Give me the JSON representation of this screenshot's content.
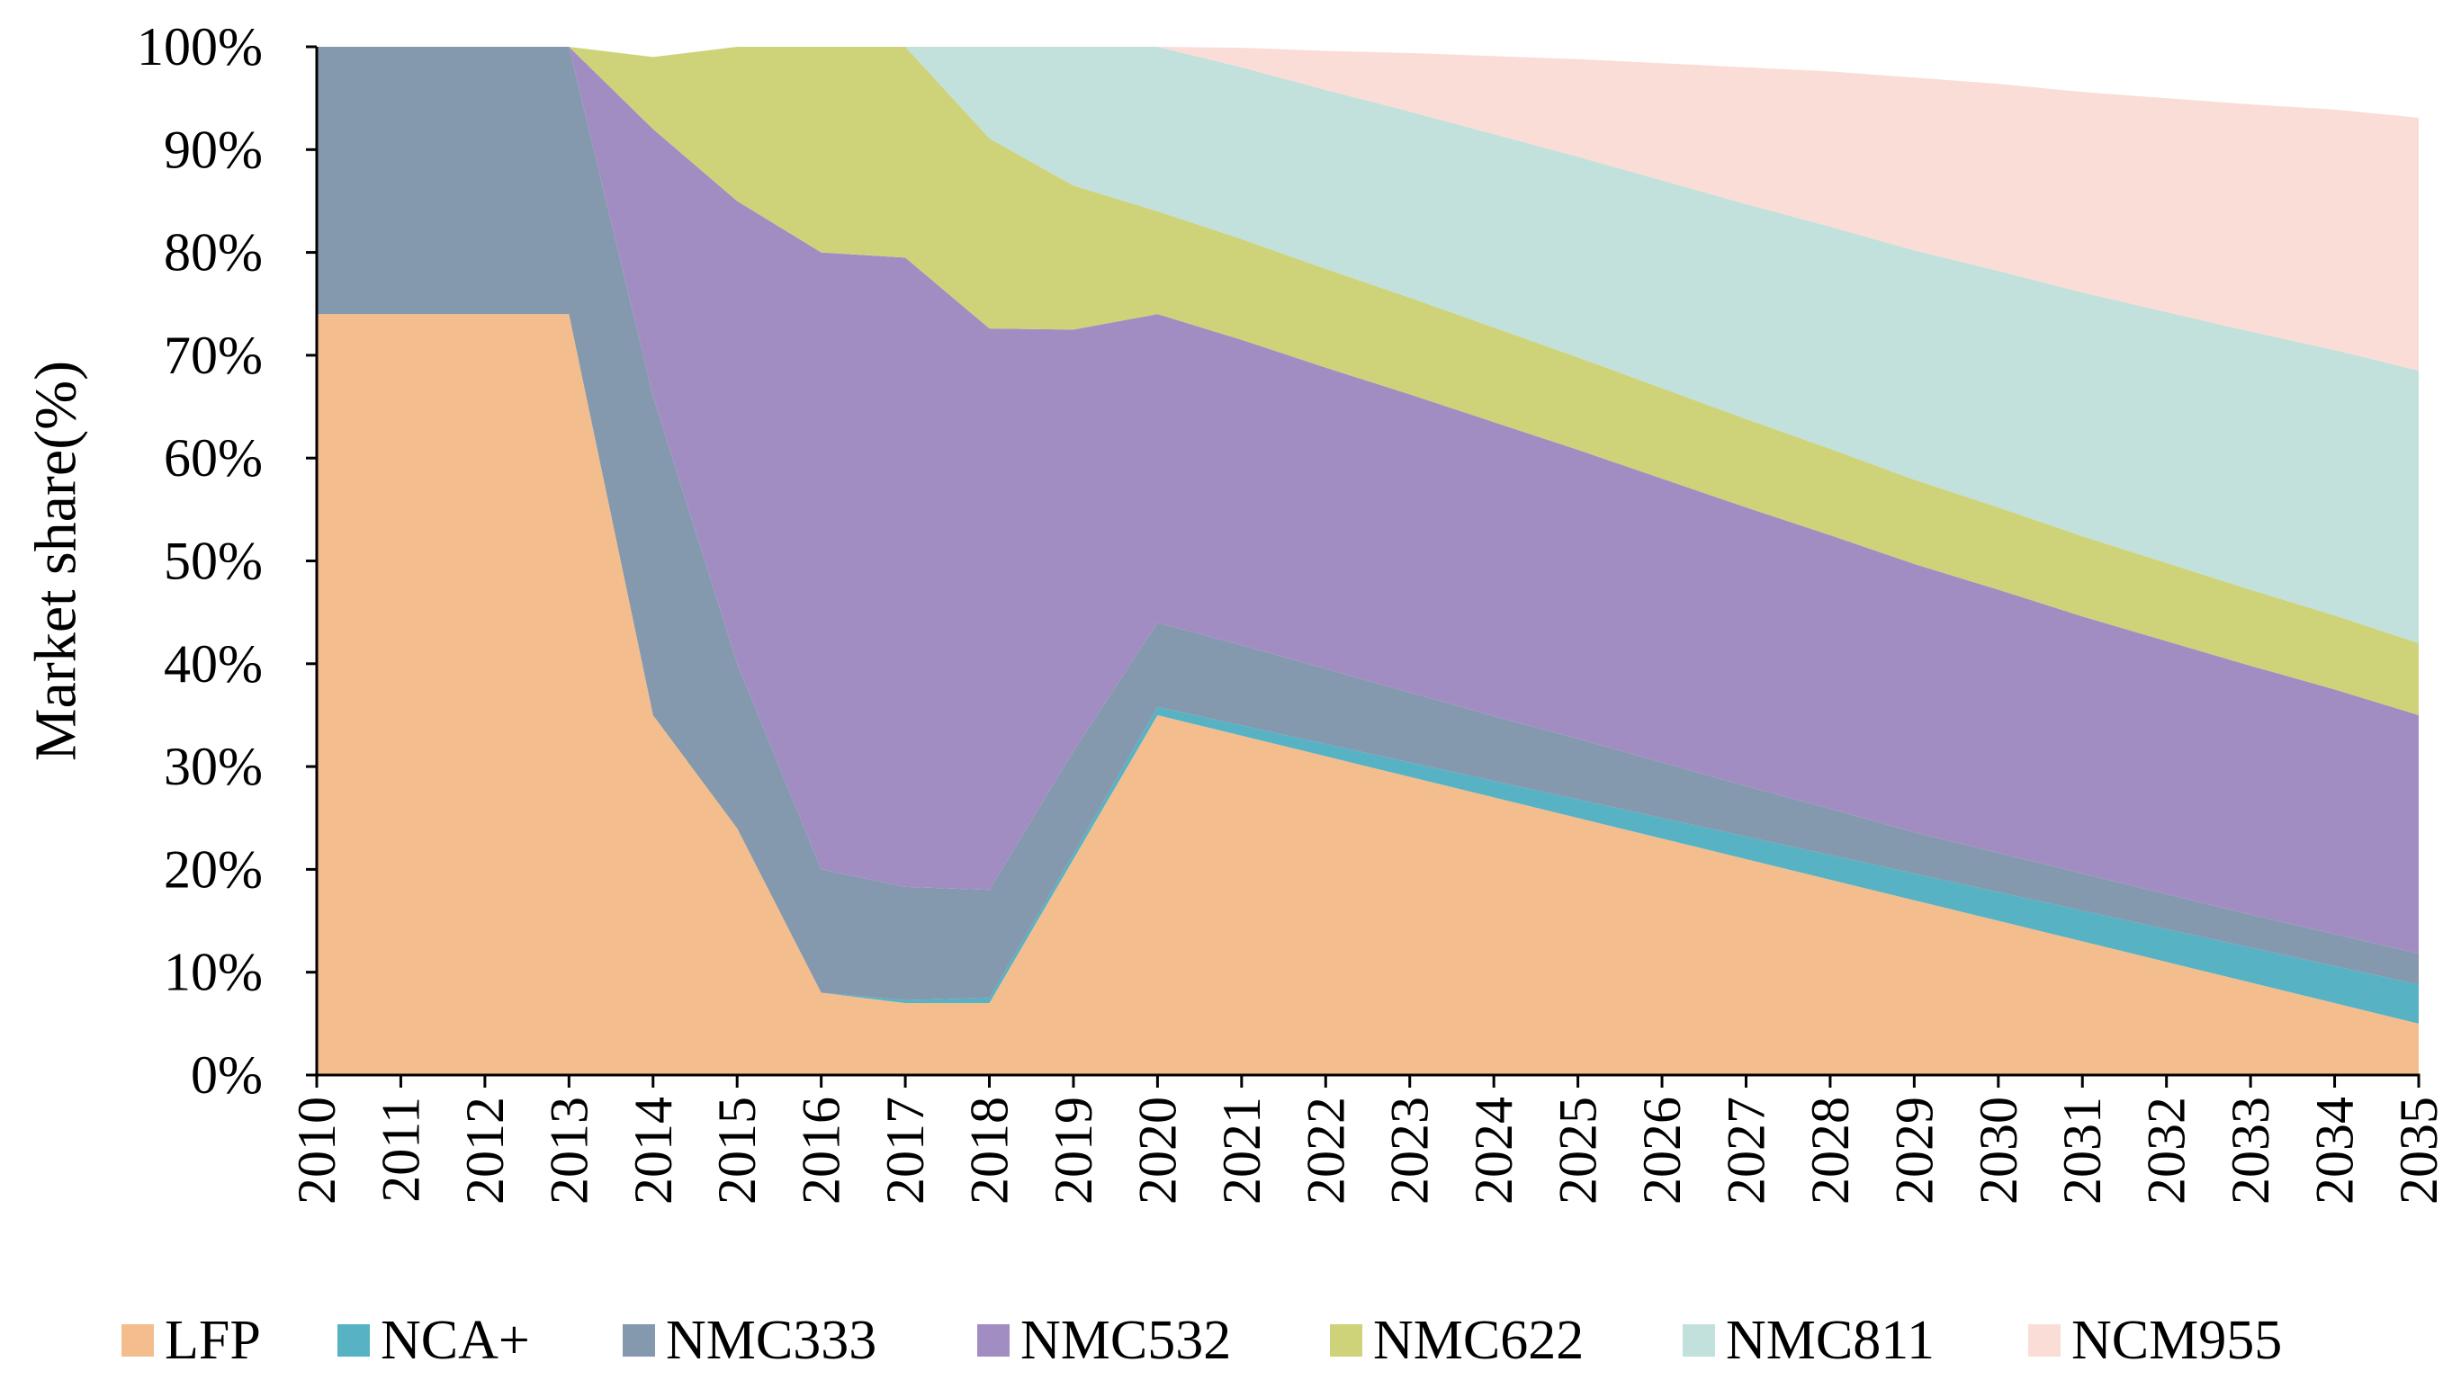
{
  "chart_data": {
    "type": "area",
    "stacked": true,
    "title": "",
    "xlabel": "",
    "ylabel": "Market share(%)",
    "ylim": [
      0,
      100
    ],
    "y_tick_labels": [
      "0%",
      "10%",
      "20%",
      "30%",
      "40%",
      "50%",
      "60%",
      "70%",
      "80%",
      "90%",
      "100%"
    ],
    "categories": [
      "2010",
      "2011",
      "2012",
      "2013",
      "2014",
      "2015",
      "2016",
      "2017",
      "2018",
      "2019",
      "2020",
      "2021",
      "2022",
      "2023",
      "2024",
      "2025",
      "2026",
      "2027",
      "2028",
      "2029",
      "2030",
      "2031",
      "2032",
      "2033",
      "2034",
      "2035"
    ],
    "grid": false,
    "legend_position": "bottom",
    "series": [
      {
        "name": "LFP",
        "color": "#F4BD8E",
        "values": [
          74,
          74,
          74,
          74,
          35,
          24,
          8,
          7,
          7,
          21,
          35,
          33,
          31,
          29,
          27,
          25,
          23,
          21,
          19,
          17,
          15,
          13,
          11,
          9,
          7,
          5
        ]
      },
      {
        "name": "NCA+",
        "color": "#57B2C4",
        "values": [
          0,
          0,
          0,
          0,
          0,
          0,
          0,
          0.3,
          0.5,
          0.5,
          0.8,
          1,
          1.2,
          1.4,
          1.6,
          1.8,
          2,
          2.2,
          2.4,
          2.6,
          2.8,
          3,
          3.2,
          3.4,
          3.6,
          3.8
        ]
      },
      {
        "name": "NMC333",
        "color": "#8499AD",
        "values": [
          26,
          26,
          26,
          26,
          31,
          16,
          12,
          11,
          10.5,
          10,
          8.2,
          7.8,
          7.3,
          6.8,
          6.3,
          5.9,
          5.4,
          4.9,
          4.5,
          4,
          3.8,
          3.6,
          3.4,
          3.2,
          3.1,
          3
        ]
      },
      {
        "name": "NMC532",
        "color": "#A28DC3",
        "values": [
          0,
          0,
          0,
          0,
          26,
          45,
          60,
          61.2,
          54.6,
          41,
          30,
          29.7,
          29.3,
          29,
          28.6,
          28.1,
          27.6,
          27.1,
          26.6,
          26.1,
          25.6,
          25,
          24.6,
          24.2,
          23.8,
          23.2
        ]
      },
      {
        "name": "NMC622",
        "color": "#CED37A",
        "values": [
          0,
          0,
          0,
          0,
          7,
          15,
          20,
          20.5,
          18.5,
          14,
          10,
          9.8,
          9.6,
          9.4,
          9.2,
          9,
          8.8,
          8.6,
          8.4,
          8.2,
          8,
          7.8,
          7.6,
          7.4,
          7.2,
          7
        ]
      },
      {
        "name": "NMC811",
        "color": "#C2E1DC",
        "values": [
          0,
          0,
          0,
          0,
          0,
          0,
          0,
          0,
          9,
          14,
          16,
          16.7,
          17.4,
          18.1,
          18.8,
          19.5,
          20.2,
          20.9,
          21.6,
          22.3,
          23,
          23.7,
          24.4,
          25.1,
          25.8,
          26.5
        ]
      },
      {
        "name": "NCM955",
        "color": "#FADDD6",
        "values": [
          0,
          0,
          0,
          0,
          0,
          0,
          0,
          0,
          0,
          0,
          0,
          1.9,
          3.8,
          5.7,
          7.6,
          9.5,
          11.4,
          13.3,
          15.1,
          16.8,
          18.2,
          19.5,
          20.8,
          22.1,
          23.4,
          24.6
        ]
      }
    ]
  }
}
